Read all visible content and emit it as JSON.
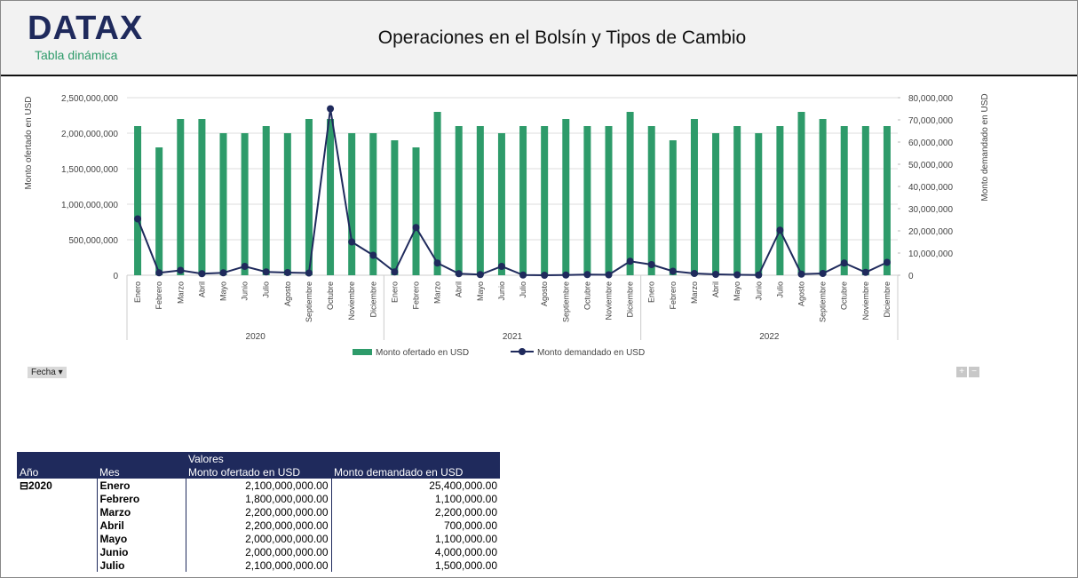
{
  "header": {
    "logo": "DATAX",
    "subtitle": "Tabla dinámica",
    "title": "Operaciones en el Bolsín y Tipos de Cambio"
  },
  "chart_data": {
    "type": "bar_line",
    "categories": [
      "Enero",
      "Febrero",
      "Marzo",
      "Abril",
      "Mayo",
      "Junio",
      "Julio",
      "Agosto",
      "Septiembre",
      "Octubre",
      "Noviembre",
      "Diciembre",
      "Enero",
      "Febrero",
      "Marzo",
      "Abril",
      "Mayo",
      "Junio",
      "Julio",
      "Agosto",
      "Septiembre",
      "Octubre",
      "Noviembre",
      "Diciembre",
      "Enero",
      "Febrero",
      "Marzo",
      "Abril",
      "Mayo",
      "Junio",
      "Julio",
      "Agosto",
      "Septiembre",
      "Octubre",
      "Noviembre",
      "Diciembre"
    ],
    "category_groups": [
      "2020",
      "2021",
      "2022"
    ],
    "y_label": "Monto ofertado en USD",
    "y2_label": "Monto demandado en USD",
    "ylim": [
      0,
      2500000000
    ],
    "yticks": [
      {
        "value": 0,
        "label": "0"
      },
      {
        "value": 500000000,
        "label": "500,000,000"
      },
      {
        "value": 1000000000,
        "label": "1,000,000,000"
      },
      {
        "value": 1500000000,
        "label": "1,500,000,000"
      },
      {
        "value": 2000000000,
        "label": "2,000,000,000"
      },
      {
        "value": 2500000000,
        "label": "2,500,000,000"
      }
    ],
    "y2lim": [
      0,
      80000000
    ],
    "y2ticks": [
      {
        "value": 0,
        "label": "0"
      },
      {
        "value": 10000000,
        "label": "10,000,000"
      },
      {
        "value": 20000000,
        "label": "20,000,000"
      },
      {
        "value": 30000000,
        "label": "30,000,000"
      },
      {
        "value": 40000000,
        "label": "40,000,000"
      },
      {
        "value": 50000000,
        "label": "50,000,000"
      },
      {
        "value": 60000000,
        "label": "60,000,000"
      },
      {
        "value": 70000000,
        "label": "70,000,000"
      },
      {
        "value": 80000000,
        "label": "80,000,000"
      }
    ],
    "grid": true,
    "series": [
      {
        "name": "Monto ofertado en USD",
        "type": "bar",
        "color": "#2e9b6a",
        "values": [
          2100000000,
          1800000000,
          2200000000,
          2200000000,
          2000000000,
          2000000000,
          2100000000,
          2000000000,
          2200000000,
          2200000000,
          2000000000,
          2000000000,
          1900000000,
          1800000000,
          2300000000,
          2100000000,
          2100000000,
          2000000000,
          2100000000,
          2100000000,
          2200000000,
          2100000000,
          2100000000,
          2300000000,
          2100000000,
          1900000000,
          2200000000,
          2000000000,
          2100000000,
          2000000000,
          2100000000,
          2300000000,
          2200000000,
          2100000000,
          2100000000,
          2100000000
        ]
      },
      {
        "name": "Monto demandado en USD",
        "type": "line",
        "axis": "y2",
        "color": "#1f2a5c",
        "values": [
          25400000,
          1100000,
          2200000,
          700000,
          1100000,
          4000000,
          1500000,
          1200000,
          1000000,
          75000000,
          15000000,
          9000000,
          1500000,
          21500000,
          5500000,
          700000,
          300000,
          4000000,
          100000,
          0,
          100000,
          300000,
          200000,
          6300000,
          4800000,
          1800000,
          800000,
          400000,
          200000,
          100000,
          20300000,
          500000,
          800000,
          5500000,
          1300000,
          5800000
        ]
      }
    ]
  },
  "controls": {
    "filter": "Fecha",
    "expand": "+",
    "collapse": "−"
  },
  "table": {
    "values_header": "Valores",
    "columns": [
      "Año",
      "Mes",
      "Monto ofertado en USD",
      "Monto demandado en USD"
    ],
    "groups": [
      {
        "year": "2020",
        "rows": [
          [
            "Enero",
            "2,100,000,000.00",
            "25,400,000.00"
          ],
          [
            "Febrero",
            "1,800,000,000.00",
            "1,100,000.00"
          ],
          [
            "Marzo",
            "2,200,000,000.00",
            "2,200,000.00"
          ],
          [
            "Abril",
            "2,200,000,000.00",
            "700,000.00"
          ],
          [
            "Mayo",
            "2,000,000,000.00",
            "1,100,000.00"
          ],
          [
            "Junio",
            "2,000,000,000.00",
            "4,000,000.00"
          ],
          [
            "Julio",
            "2,100,000,000.00",
            "1,500,000.00"
          ]
        ]
      }
    ]
  }
}
